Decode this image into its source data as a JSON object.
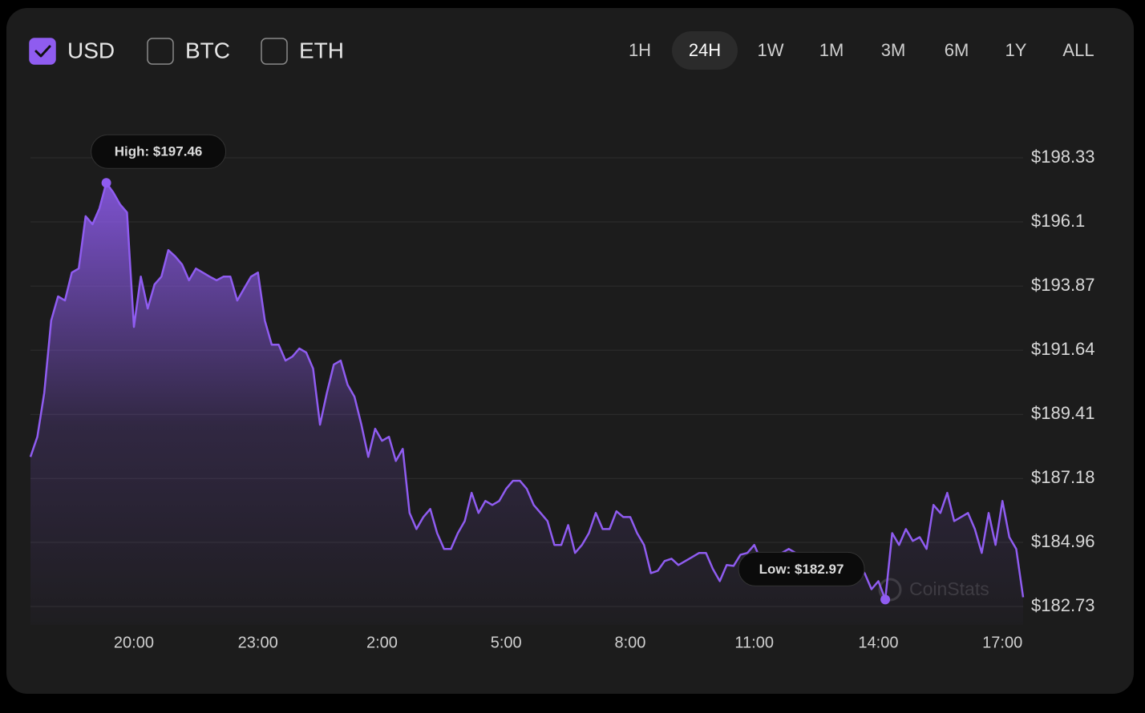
{
  "currencies": [
    {
      "label": "USD",
      "checked": true
    },
    {
      "label": "BTC",
      "checked": false
    },
    {
      "label": "ETH",
      "checked": false
    }
  ],
  "ranges": [
    "1H",
    "24H",
    "1W",
    "1M",
    "3M",
    "6M",
    "1Y",
    "ALL"
  ],
  "selected_range": "24H",
  "watermark": "CoinStats",
  "chart_data": {
    "type": "area",
    "color": "#8f5cf0",
    "x": [
      "17:30",
      "17:40",
      "17:50",
      "18:00",
      "18:10",
      "18:20",
      "18:30",
      "18:40",
      "18:50",
      "19:00",
      "19:10",
      "19:20",
      "19:30",
      "19:40",
      "19:50",
      "20:00",
      "20:10",
      "20:20",
      "20:30",
      "20:40",
      "20:50",
      "21:00",
      "21:10",
      "21:20",
      "21:30",
      "21:40",
      "21:50",
      "22:00",
      "22:10",
      "22:20",
      "22:30",
      "22:40",
      "22:50",
      "23:00",
      "23:10",
      "23:20",
      "23:30",
      "23:40",
      "23:50",
      "0:00",
      "0:10",
      "0:20",
      "0:30",
      "0:40",
      "0:50",
      "1:00",
      "1:10",
      "1:20",
      "1:30",
      "1:40",
      "1:50",
      "2:00",
      "2:10",
      "2:20",
      "2:30",
      "2:40",
      "2:50",
      "3:00",
      "3:10",
      "3:20",
      "3:30",
      "3:40",
      "3:50",
      "4:00",
      "4:10",
      "4:20",
      "4:30",
      "4:40",
      "4:50",
      "5:00",
      "5:10",
      "5:20",
      "5:30",
      "5:40",
      "5:50",
      "6:00",
      "6:10",
      "6:20",
      "6:30",
      "6:40",
      "6:50",
      "7:00",
      "7:10",
      "7:20",
      "7:30",
      "7:40",
      "7:50",
      "8:00",
      "8:10",
      "8:20",
      "8:30",
      "8:40",
      "8:50",
      "9:00",
      "9:10",
      "9:20",
      "9:30",
      "9:40",
      "9:50",
      "10:00",
      "10:10",
      "10:20",
      "10:30",
      "10:40",
      "10:50",
      "11:00",
      "11:10",
      "11:20",
      "11:30",
      "11:40",
      "11:50",
      "12:00",
      "12:10",
      "12:20",
      "12:30",
      "12:40",
      "12:50",
      "13:00",
      "13:10",
      "13:20",
      "13:30",
      "13:40",
      "13:50",
      "14:00",
      "14:10",
      "14:20",
      "14:30",
      "14:40",
      "14:50",
      "15:00",
      "15:10",
      "15:20",
      "15:30",
      "15:40",
      "15:50",
      "16:00",
      "16:10",
      "16:20",
      "16:30",
      "16:40",
      "16:50",
      "17:00",
      "17:10",
      "17:20",
      "17:30"
    ],
    "values": [
      187.93,
      188.63,
      190.16,
      192.67,
      193.51,
      193.37,
      194.34,
      194.48,
      196.3,
      196.02,
      196.57,
      197.46,
      197.13,
      196.71,
      196.43,
      192.45,
      194.2,
      193.09,
      193.93,
      194.2,
      195.12,
      194.9,
      194.62,
      194.07,
      194.48,
      194.34,
      194.2,
      194.07,
      194.2,
      194.2,
      193.37,
      193.79,
      194.2,
      194.34,
      192.67,
      191.83,
      191.83,
      191.28,
      191.42,
      191.7,
      191.56,
      191.0,
      189.05,
      190.16,
      191.14,
      191.28,
      190.44,
      190.02,
      189.05,
      187.93,
      188.91,
      188.49,
      188.63,
      187.79,
      188.21,
      185.98,
      185.42,
      185.84,
      186.12,
      185.28,
      184.73,
      184.73,
      185.28,
      185.7,
      186.68,
      185.98,
      186.4,
      186.26,
      186.4,
      186.82,
      187.1,
      187.1,
      186.82,
      186.26,
      185.98,
      185.7,
      184.87,
      184.87,
      185.56,
      184.59,
      184.87,
      185.28,
      185.98,
      185.42,
      185.42,
      186.04,
      185.84,
      185.84,
      185.28,
      184.87,
      183.89,
      183.97,
      184.31,
      184.39,
      184.17,
      184.31,
      184.45,
      184.59,
      184.59,
      184.03,
      183.61,
      184.17,
      184.14,
      184.53,
      184.59,
      184.87,
      184.31,
      184.31,
      184.45,
      184.59,
      184.73,
      184.59,
      184.31,
      184.17,
      184.31,
      184.59,
      184.31,
      184.17,
      184.03,
      184.31,
      184.17,
      183.89,
      183.33,
      183.61,
      182.97,
      185.28,
      184.87,
      185.42,
      185.01,
      185.14,
      184.73,
      186.26,
      185.98,
      186.68,
      185.7,
      185.84,
      185.98,
      185.42,
      184.59,
      185.98,
      184.87,
      186.4,
      185.14,
      184.73,
      183.05
    ],
    "xticks": [
      "20:00",
      "23:00",
      "2:00",
      "5:00",
      "8:00",
      "11:00",
      "14:00",
      "17:00"
    ],
    "ylim": [
      182.73,
      198.33
    ],
    "yticks": [
      {
        "value": 182.73,
        "label": "$182.73"
      },
      {
        "value": 184.96,
        "label": "$184.96"
      },
      {
        "value": 187.18,
        "label": "$187.18"
      },
      {
        "value": 189.41,
        "label": "$189.41"
      },
      {
        "value": 191.64,
        "label": "$191.64"
      },
      {
        "value": 193.87,
        "label": "$193.87"
      },
      {
        "value": 196.1,
        "label": "$196.1"
      },
      {
        "value": 198.33,
        "label": "$198.33"
      }
    ],
    "grid": true,
    "annotations": [
      {
        "label": "High: $197.46",
        "value": 197.46,
        "x": "19:20"
      },
      {
        "label": "Low: $182.97",
        "value": 182.97,
        "x": "14:10"
      }
    ]
  }
}
